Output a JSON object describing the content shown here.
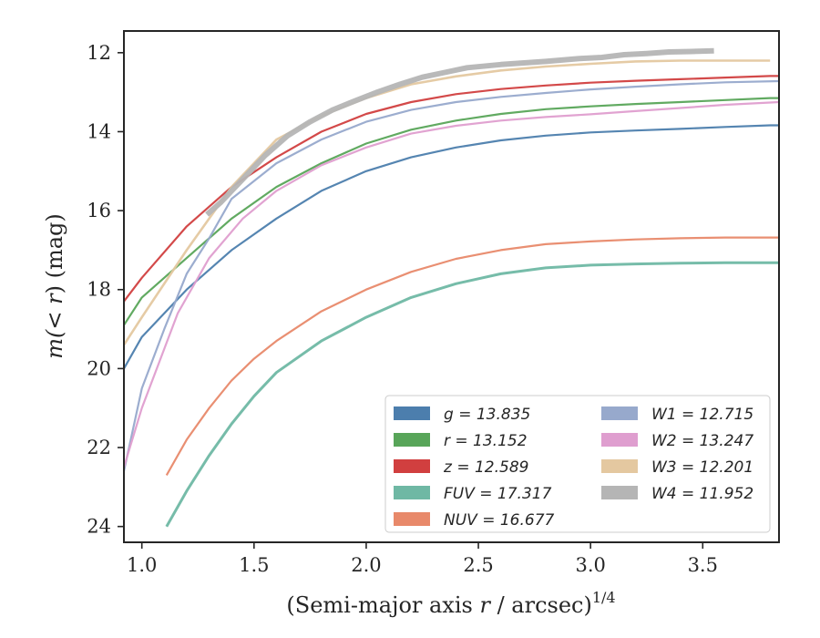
{
  "chart_data": {
    "type": "line",
    "xlabel_main": "(Semi-major axis ",
    "xlabel_var": "r",
    "xlabel_rest": " / arcsec)",
    "xlabel_sup": "1/4",
    "ylabel_pre": "m(< ",
    "ylabel_var": "r",
    "ylabel_post": ") (mag)",
    "xlim": [
      0.92,
      3.84
    ],
    "ylim": [
      24.4,
      11.45
    ],
    "y_inverted": true,
    "xticks": [
      "1.0",
      "1.5",
      "2.0",
      "2.5",
      "3.0",
      "3.5"
    ],
    "xtick_values": [
      1.0,
      1.5,
      2.0,
      2.5,
      3.0,
      3.5
    ],
    "yticks": [
      "12",
      "14",
      "16",
      "18",
      "20",
      "22",
      "24"
    ],
    "ytick_values": [
      12,
      14,
      16,
      18,
      20,
      22,
      24
    ],
    "legend_position": "lower-right",
    "series": [
      {
        "name": "g = 13.835",
        "color": "#4c7ead",
        "width": 2.2,
        "x": [
          0.92,
          1.0,
          1.2,
          1.4,
          1.6,
          1.8,
          2.0,
          2.2,
          2.4,
          2.6,
          2.8,
          3.0,
          3.2,
          3.4,
          3.6,
          3.8,
          3.84
        ],
        "y": [
          20.0,
          19.2,
          18.0,
          17.0,
          16.2,
          15.5,
          15.0,
          14.65,
          14.4,
          14.22,
          14.1,
          14.02,
          13.97,
          13.93,
          13.88,
          13.84,
          13.84
        ]
      },
      {
        "name": "r = 13.152",
        "color": "#58a559",
        "width": 2.2,
        "x": [
          0.92,
          1.0,
          1.2,
          1.4,
          1.6,
          1.8,
          2.0,
          2.2,
          2.4,
          2.6,
          2.8,
          3.0,
          3.2,
          3.4,
          3.6,
          3.8,
          3.84
        ],
        "y": [
          18.9,
          18.2,
          17.2,
          16.2,
          15.4,
          14.8,
          14.3,
          13.95,
          13.72,
          13.55,
          13.43,
          13.36,
          13.3,
          13.25,
          13.2,
          13.15,
          13.15
        ]
      },
      {
        "name": "z = 12.589",
        "color": "#d13f3f",
        "width": 2.2,
        "x": [
          0.92,
          1.0,
          1.2,
          1.4,
          1.6,
          1.8,
          2.0,
          2.2,
          2.4,
          2.6,
          2.8,
          3.0,
          3.2,
          3.4,
          3.6,
          3.8,
          3.84
        ],
        "y": [
          18.3,
          17.7,
          16.4,
          15.4,
          14.65,
          14.0,
          13.55,
          13.25,
          13.05,
          12.92,
          12.83,
          12.76,
          12.71,
          12.67,
          12.63,
          12.59,
          12.59
        ]
      },
      {
        "name": "FUV = 17.317",
        "color": "#6fb8a4",
        "width": 3.0,
        "x": [
          1.11,
          1.2,
          1.3,
          1.4,
          1.5,
          1.6,
          1.8,
          2.0,
          2.2,
          2.4,
          2.6,
          2.8,
          3.0,
          3.2,
          3.4,
          3.6,
          3.84
        ],
        "y": [
          24.0,
          23.1,
          22.2,
          21.4,
          20.7,
          20.1,
          19.3,
          18.7,
          18.2,
          17.85,
          17.6,
          17.45,
          17.38,
          17.35,
          17.33,
          17.32,
          17.32
        ]
      },
      {
        "name": "NUV = 16.677",
        "color": "#e8896a",
        "width": 2.2,
        "x": [
          1.11,
          1.2,
          1.3,
          1.4,
          1.5,
          1.6,
          1.8,
          2.0,
          2.2,
          2.4,
          2.6,
          2.8,
          3.0,
          3.2,
          3.4,
          3.6,
          3.84
        ],
        "y": [
          22.7,
          21.8,
          21.0,
          20.3,
          19.75,
          19.3,
          18.55,
          18.0,
          17.55,
          17.22,
          17.0,
          16.85,
          16.78,
          16.73,
          16.7,
          16.68,
          16.68
        ]
      },
      {
        "name": "W1 = 12.715",
        "color": "#97a9cc",
        "width": 2.2,
        "x": [
          0.92,
          1.0,
          1.1,
          1.2,
          1.3,
          1.4,
          1.6,
          1.8,
          2.0,
          2.2,
          2.4,
          2.6,
          2.8,
          3.0,
          3.2,
          3.4,
          3.6,
          3.84
        ],
        "y": [
          22.6,
          20.5,
          19.0,
          17.6,
          16.7,
          15.7,
          14.8,
          14.2,
          13.75,
          13.45,
          13.25,
          13.12,
          13.02,
          12.93,
          12.86,
          12.8,
          12.75,
          12.72
        ]
      },
      {
        "name": "W2 = 13.247",
        "color": "#df9ecf",
        "width": 2.2,
        "x": [
          0.92,
          1.0,
          1.16,
          1.3,
          1.45,
          1.6,
          1.8,
          2.0,
          2.2,
          2.4,
          2.6,
          2.8,
          3.0,
          3.2,
          3.4,
          3.6,
          3.84
        ],
        "y": [
          22.5,
          21.0,
          18.6,
          17.2,
          16.2,
          15.5,
          14.85,
          14.4,
          14.05,
          13.85,
          13.72,
          13.63,
          13.56,
          13.48,
          13.4,
          13.32,
          13.25
        ]
      },
      {
        "name": "W3 = 12.201",
        "color": "#e4c8a0",
        "width": 2.6,
        "x": [
          0.92,
          1.0,
          1.2,
          1.3,
          1.4,
          1.6,
          1.8,
          2.0,
          2.2,
          2.4,
          2.6,
          2.8,
          3.0,
          3.2,
          3.4,
          3.6,
          3.8
        ],
        "y": [
          19.4,
          18.7,
          17.0,
          16.2,
          15.4,
          14.2,
          13.6,
          13.15,
          12.8,
          12.6,
          12.45,
          12.35,
          12.28,
          12.22,
          12.2,
          12.2,
          12.2
        ]
      },
      {
        "name": "W4 = 11.952",
        "color": "#b5b5b5",
        "width": 6,
        "x": [
          1.29,
          1.35,
          1.45,
          1.55,
          1.65,
          1.75,
          1.85,
          1.95,
          2.05,
          2.15,
          2.25,
          2.35,
          2.45,
          2.6,
          2.8,
          2.95,
          3.05,
          3.15,
          3.25,
          3.35,
          3.45,
          3.55
        ],
        "y": [
          16.1,
          15.8,
          15.2,
          14.6,
          14.1,
          13.75,
          13.45,
          13.22,
          13.0,
          12.8,
          12.62,
          12.5,
          12.38,
          12.3,
          12.22,
          12.15,
          12.12,
          12.05,
          12.02,
          11.98,
          11.97,
          11.95
        ]
      }
    ]
  }
}
